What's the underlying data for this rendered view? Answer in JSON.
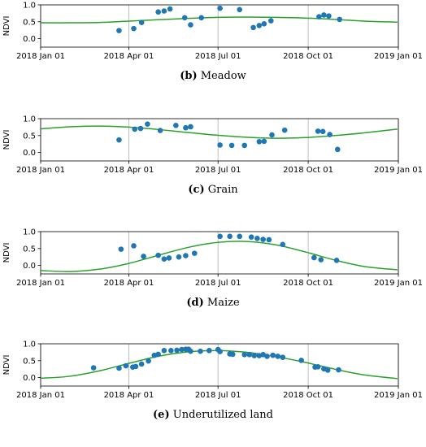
{
  "chart_data": [
    {
      "type": "scatter",
      "caption_letter": "(b)",
      "caption_text": " Meadow",
      "ylabel": "NDVI",
      "xlabel": "",
      "xlim": [
        "2018-01-01",
        "2019-01-01"
      ],
      "ylim": [
        -0.25,
        1.0
      ],
      "x_ticks": [
        "2018-01-01",
        "2018-04-01",
        "2018-07-01",
        "2018-10-01",
        "2019-01-01"
      ],
      "x_tick_labels": [
        "2018 Jan 01",
        "2018 Apr 01",
        "2018 Jul 01",
        "2018 Oct 01",
        "2019 Jan 01"
      ],
      "y_ticks": [
        0.0,
        0.5,
        1.0
      ],
      "y_tick_labels": [
        "0.0",
        "0.5",
        "1.0"
      ],
      "grid": "vertical",
      "series": [
        {
          "kind": "points",
          "color": "#1f77b4",
          "x": [
            "2018-03-22",
            "2018-04-06",
            "2018-04-14",
            "2018-05-01",
            "2018-05-07",
            "2018-05-13",
            "2018-05-28",
            "2018-06-03",
            "2018-06-14",
            "2018-07-03",
            "2018-07-23",
            "2018-08-06",
            "2018-08-12",
            "2018-08-17",
            "2018-08-24",
            "2018-10-12",
            "2018-10-17",
            "2018-10-22",
            "2018-11-02"
          ],
          "y": [
            0.24,
            0.3,
            0.48,
            0.79,
            0.82,
            0.88,
            0.62,
            0.41,
            0.62,
            0.9,
            0.86,
            0.33,
            0.39,
            0.44,
            0.53,
            0.65,
            0.7,
            0.67,
            0.57
          ]
        },
        {
          "kind": "line",
          "color": "#2ca02c",
          "x": [
            "2018-01-01",
            "2018-01-31",
            "2018-03-02",
            "2018-04-01",
            "2018-05-01",
            "2018-05-31",
            "2018-06-30",
            "2018-07-30",
            "2018-08-29",
            "2018-09-28",
            "2018-10-28",
            "2018-11-27",
            "2018-12-31"
          ],
          "y": [
            0.47,
            0.47,
            0.48,
            0.52,
            0.56,
            0.6,
            0.63,
            0.64,
            0.63,
            0.61,
            0.57,
            0.52,
            0.49
          ]
        }
      ]
    },
    {
      "type": "scatter",
      "caption_letter": "(c)",
      "caption_text": " Grain",
      "ylabel": "NDVI",
      "xlabel": "",
      "xlim": [
        "2018-01-01",
        "2019-01-01"
      ],
      "ylim": [
        -0.25,
        1.0
      ],
      "x_ticks": [
        "2018-01-01",
        "2018-04-01",
        "2018-07-01",
        "2018-10-01",
        "2019-01-01"
      ],
      "x_tick_labels": [
        "2018 Jan 01",
        "2018 Apr 01",
        "2018 Jul 01",
        "2018 Oct 01",
        "2019 Jan 01"
      ],
      "y_ticks": [
        0.0,
        0.5,
        1.0
      ],
      "y_tick_labels": [
        "0.0",
        "0.5",
        "1.0"
      ],
      "grid": "vertical",
      "series": [
        {
          "kind": "points",
          "color": "#1f77b4",
          "x": [
            "2018-03-22",
            "2018-04-07",
            "2018-04-13",
            "2018-04-20",
            "2018-05-03",
            "2018-05-19",
            "2018-05-29",
            "2018-06-03",
            "2018-07-03",
            "2018-07-15",
            "2018-07-28",
            "2018-08-12",
            "2018-08-17",
            "2018-08-25",
            "2018-09-07",
            "2018-10-11",
            "2018-10-16",
            "2018-10-23",
            "2018-10-31"
          ],
          "y": [
            0.37,
            0.69,
            0.71,
            0.84,
            0.65,
            0.8,
            0.73,
            0.76,
            0.22,
            0.21,
            0.21,
            0.32,
            0.33,
            0.52,
            0.66,
            0.63,
            0.62,
            0.53,
            0.09
          ]
        },
        {
          "kind": "line",
          "color": "#2ca02c",
          "x": [
            "2018-01-01",
            "2018-01-31",
            "2018-03-02",
            "2018-04-01",
            "2018-05-01",
            "2018-05-31",
            "2018-06-30",
            "2018-07-30",
            "2018-08-29",
            "2018-09-28",
            "2018-10-28",
            "2018-11-27",
            "2018-12-31"
          ],
          "y": [
            0.7,
            0.76,
            0.78,
            0.75,
            0.68,
            0.59,
            0.51,
            0.45,
            0.42,
            0.44,
            0.5,
            0.58,
            0.69
          ]
        }
      ]
    },
    {
      "type": "scatter",
      "caption_letter": "(d)",
      "caption_text": " Maize",
      "ylabel": "NDVI",
      "xlabel": "",
      "xlim": [
        "2018-01-01",
        "2019-01-01"
      ],
      "ylim": [
        -0.25,
        1.0
      ],
      "x_ticks": [
        "2018-01-01",
        "2018-04-01",
        "2018-07-01",
        "2018-10-01",
        "2019-01-01"
      ],
      "x_tick_labels": [
        "2018 Jan 01",
        "2018 Apr 01",
        "2018 Jul 01",
        "2018 Oct 01",
        "2019 Jan 01"
      ],
      "y_ticks": [
        0.0,
        0.5,
        1.0
      ],
      "y_tick_labels": [
        "0.0",
        "0.5",
        "1.0"
      ],
      "grid": "vertical",
      "series": [
        {
          "kind": "points",
          "color": "#1f77b4",
          "x": [
            "2018-03-24",
            "2018-04-06",
            "2018-04-16",
            "2018-05-01",
            "2018-05-07",
            "2018-05-12",
            "2018-05-22",
            "2018-05-29",
            "2018-06-07",
            "2018-07-03",
            "2018-07-13",
            "2018-07-23",
            "2018-08-04",
            "2018-08-10",
            "2018-08-16",
            "2018-08-22",
            "2018-09-05",
            "2018-10-07",
            "2018-10-14",
            "2018-10-30"
          ],
          "y": [
            0.48,
            0.58,
            0.27,
            0.3,
            0.19,
            0.22,
            0.25,
            0.29,
            0.36,
            0.86,
            0.86,
            0.86,
            0.84,
            0.8,
            0.77,
            0.76,
            0.62,
            0.23,
            0.17,
            0.15
          ]
        },
        {
          "kind": "line",
          "color": "#2ca02c",
          "x": [
            "2018-01-01",
            "2018-01-31",
            "2018-03-02",
            "2018-04-01",
            "2018-05-01",
            "2018-05-31",
            "2018-06-30",
            "2018-07-30",
            "2018-08-29",
            "2018-09-28",
            "2018-10-28",
            "2018-11-27",
            "2018-12-31"
          ],
          "y": [
            -0.15,
            -0.18,
            -0.11,
            0.06,
            0.3,
            0.53,
            0.68,
            0.71,
            0.61,
            0.4,
            0.16,
            -0.03,
            -0.13
          ]
        }
      ]
    },
    {
      "type": "scatter",
      "caption_letter": "(e)",
      "caption_text": " Underutilized land",
      "ylabel": "NDVI",
      "xlabel": "",
      "xlim": [
        "2018-01-01",
        "2019-01-01"
      ],
      "ylim": [
        -0.25,
        1.0
      ],
      "x_ticks": [
        "2018-01-01",
        "2018-04-01",
        "2018-07-01",
        "2018-10-01",
        "2019-01-01"
      ],
      "x_tick_labels": [
        "2018 Jan 01",
        "2018 Apr 01",
        "2018 Jul 01",
        "2018 Oct 01",
        "2019 Jan 01"
      ],
      "y_ticks": [
        0.0,
        0.5,
        1.0
      ],
      "y_tick_labels": [
        "0.0",
        "0.5",
        "1.0"
      ],
      "grid": "vertical",
      "series": [
        {
          "kind": "points",
          "color": "#1f77b4",
          "x": [
            "2018-02-24",
            "2018-03-22",
            "2018-03-29",
            "2018-04-05",
            "2018-04-08",
            "2018-04-14",
            "2018-04-21",
            "2018-04-27",
            "2018-05-01",
            "2018-05-07",
            "2018-05-14",
            "2018-05-20",
            "2018-05-25",
            "2018-05-29",
            "2018-06-01",
            "2018-06-03",
            "2018-06-13",
            "2018-06-22",
            "2018-07-01",
            "2018-07-03",
            "2018-07-13",
            "2018-07-16",
            "2018-07-28",
            "2018-08-02",
            "2018-08-07",
            "2018-08-12",
            "2018-08-16",
            "2018-08-20",
            "2018-08-26",
            "2018-08-31",
            "2018-09-05",
            "2018-09-24",
            "2018-10-08",
            "2018-10-11",
            "2018-10-17",
            "2018-10-21",
            "2018-11-01"
          ],
          "y": [
            0.29,
            0.28,
            0.35,
            0.31,
            0.33,
            0.4,
            0.49,
            0.66,
            0.69,
            0.8,
            0.8,
            0.81,
            0.83,
            0.84,
            0.84,
            0.78,
            0.78,
            0.8,
            0.83,
            0.77,
            0.7,
            0.69,
            0.68,
            0.68,
            0.65,
            0.65,
            0.68,
            0.63,
            0.66,
            0.63,
            0.6,
            0.51,
            0.31,
            0.32,
            0.26,
            0.22,
            0.23
          ]
        },
        {
          "kind": "line",
          "color": "#2ca02c",
          "x": [
            "2018-01-01",
            "2018-01-31",
            "2018-03-02",
            "2018-04-01",
            "2018-05-01",
            "2018-05-31",
            "2018-06-30",
            "2018-07-30",
            "2018-08-29",
            "2018-09-28",
            "2018-10-28",
            "2018-11-27",
            "2018-12-31"
          ],
          "y": [
            -0.02,
            0.04,
            0.2,
            0.42,
            0.63,
            0.76,
            0.8,
            0.75,
            0.62,
            0.45,
            0.25,
            0.08,
            -0.03
          ]
        }
      ]
    }
  ]
}
